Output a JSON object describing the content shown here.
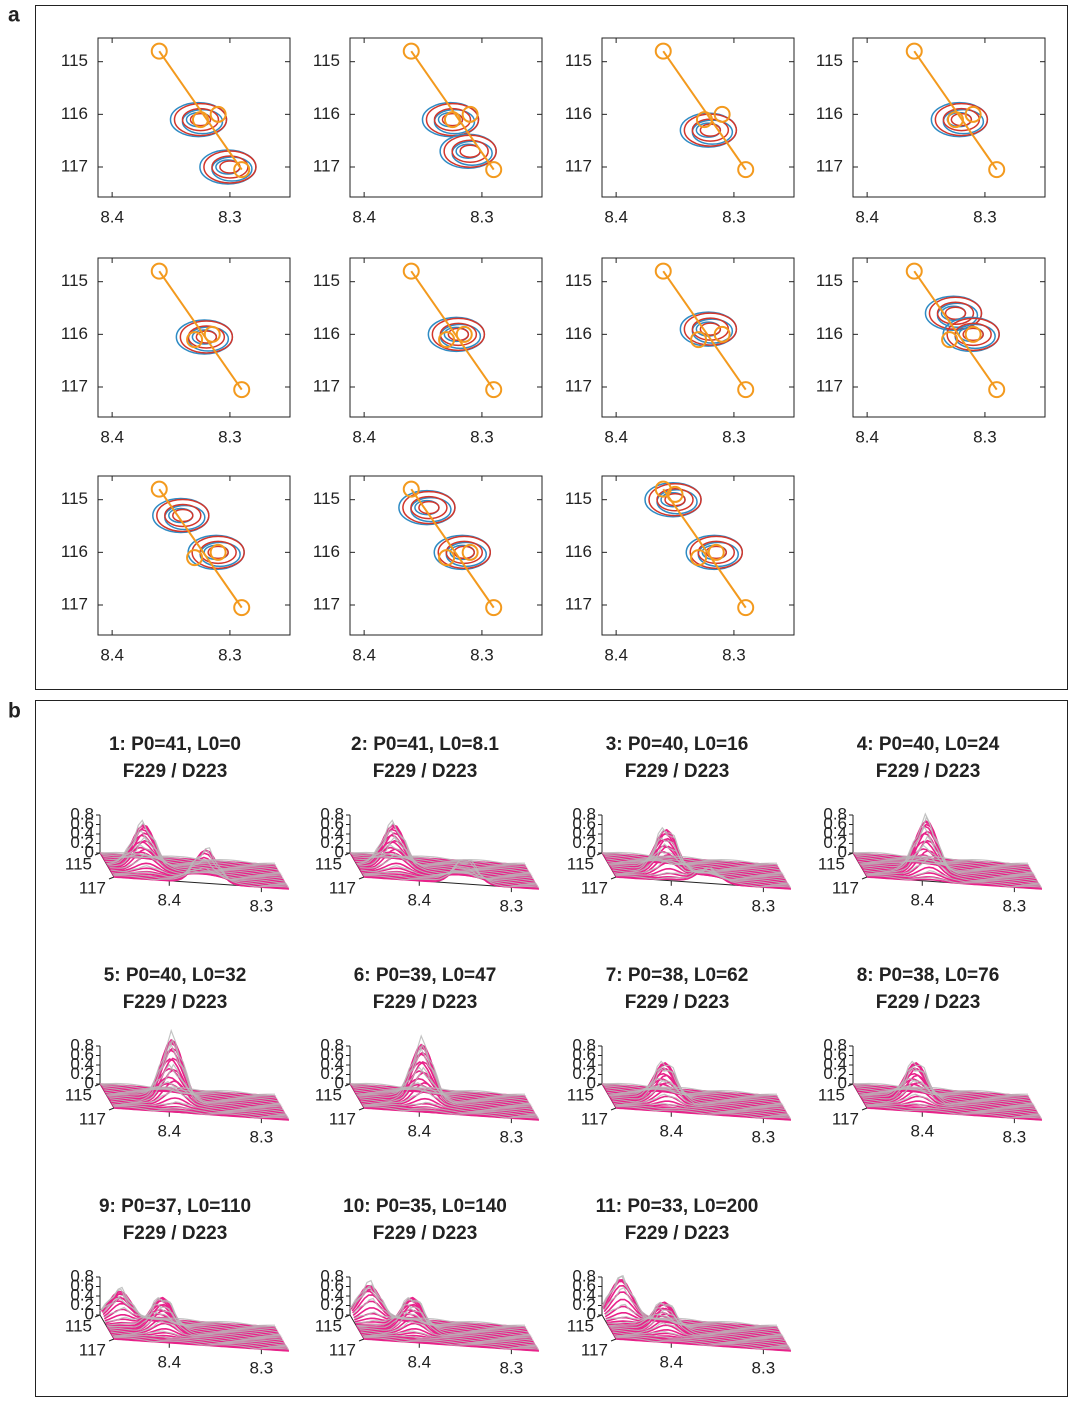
{
  "panel_labels": [
    "a",
    "b"
  ],
  "chart_data": [
    {
      "type": "contour",
      "xlim": [
        8.249,
        8.412
      ],
      "x_reversed": true,
      "ylim": [
        114.55,
        117.57
      ],
      "y_reversed": true,
      "xticks": [
        8.4,
        8.3
      ],
      "yticks": [
        115,
        116,
        117
      ],
      "trajectory": {
        "x": [
          8.36,
          8.29
        ],
        "y": [
          114.8,
          117.05
        ]
      },
      "circles": {
        "x": [
          8.325,
          8.31
        ],
        "y": [
          116.1,
          116.0
        ]
      },
      "peaks": {
        "x": [
          8.325,
          8.3
        ],
        "y": [
          116.1,
          117.0
        ]
      }
    },
    {
      "type": "contour",
      "xlim": [
        8.249,
        8.412
      ],
      "x_reversed": true,
      "ylim": [
        114.55,
        117.57
      ],
      "y_reversed": true,
      "xticks": [
        8.4,
        8.3
      ],
      "yticks": [
        115,
        116,
        117
      ],
      "trajectory": {
        "x": [
          8.36,
          8.29
        ],
        "y": [
          114.8,
          117.05
        ]
      },
      "circles": {
        "x": [
          8.325,
          8.31
        ],
        "y": [
          116.1,
          116.0
        ]
      },
      "peaks": {
        "x": [
          8.325,
          8.31
        ],
        "y": [
          116.1,
          116.7
        ]
      }
    },
    {
      "type": "contour",
      "xlim": [
        8.249,
        8.412
      ],
      "x_reversed": true,
      "ylim": [
        114.55,
        117.57
      ],
      "y_reversed": true,
      "xticks": [
        8.4,
        8.3
      ],
      "yticks": [
        115,
        116,
        117
      ],
      "trajectory": {
        "x": [
          8.36,
          8.29
        ],
        "y": [
          114.8,
          117.05
        ]
      },
      "circles": {
        "x": [
          8.325,
          8.31
        ],
        "y": [
          116.1,
          116.0
        ]
      },
      "peaks": {
        "x": [
          8.32
        ],
        "y": [
          116.3
        ]
      }
    },
    {
      "type": "contour",
      "xlim": [
        8.249,
        8.412
      ],
      "x_reversed": true,
      "ylim": [
        114.55,
        117.57
      ],
      "y_reversed": true,
      "xticks": [
        8.4,
        8.3
      ],
      "yticks": [
        115,
        116,
        117
      ],
      "trajectory": {
        "x": [
          8.36,
          8.29
        ],
        "y": [
          114.8,
          117.05
        ]
      },
      "circles": {
        "x": [
          8.325,
          8.31
        ],
        "y": [
          116.1,
          116.0
        ]
      },
      "peaks": {
        "x": [
          8.32
        ],
        "y": [
          116.1
        ]
      }
    },
    {
      "type": "contour",
      "xlim": [
        8.249,
        8.412
      ],
      "x_reversed": true,
      "ylim": [
        114.55,
        117.57
      ],
      "y_reversed": true,
      "xticks": [
        8.4,
        8.3
      ],
      "yticks": [
        115,
        116,
        117
      ],
      "trajectory": {
        "x": [
          8.36,
          8.29
        ],
        "y": [
          114.8,
          117.05
        ]
      },
      "circles": {
        "x": [
          8.33,
          8.315
        ],
        "y": [
          116.1,
          116.0
        ]
      },
      "peaks": {
        "x": [
          8.32
        ],
        "y": [
          116.05
        ]
      }
    },
    {
      "type": "contour",
      "xlim": [
        8.249,
        8.412
      ],
      "x_reversed": true,
      "ylim": [
        114.55,
        117.57
      ],
      "y_reversed": true,
      "xticks": [
        8.4,
        8.3
      ],
      "yticks": [
        115,
        116,
        117
      ],
      "trajectory": {
        "x": [
          8.36,
          8.29
        ],
        "y": [
          114.8,
          117.05
        ]
      },
      "circles": {
        "x": [
          8.33,
          8.315
        ],
        "y": [
          116.1,
          116.0
        ]
      },
      "peaks": {
        "x": [
          8.32
        ],
        "y": [
          116.0
        ]
      }
    },
    {
      "type": "contour",
      "xlim": [
        8.249,
        8.412
      ],
      "x_reversed": true,
      "ylim": [
        114.55,
        117.57
      ],
      "y_reversed": true,
      "xticks": [
        8.4,
        8.3
      ],
      "yticks": [
        115,
        116,
        117
      ],
      "trajectory": {
        "x": [
          8.36,
          8.29
        ],
        "y": [
          114.8,
          117.05
        ]
      },
      "circles": {
        "x": [
          8.33,
          8.31
        ],
        "y": [
          116.1,
          116.0
        ]
      },
      "peaks": {
        "x": [
          8.32
        ],
        "y": [
          115.9
        ]
      }
    },
    {
      "type": "contour",
      "xlim": [
        8.249,
        8.412
      ],
      "x_reversed": true,
      "ylim": [
        114.55,
        117.57
      ],
      "y_reversed": true,
      "xticks": [
        8.4,
        8.3
      ],
      "yticks": [
        115,
        116,
        117
      ],
      "trajectory": {
        "x": [
          8.36,
          8.29
        ],
        "y": [
          114.8,
          117.05
        ]
      },
      "circles": {
        "x": [
          8.33,
          8.31
        ],
        "y": [
          116.1,
          116.0
        ]
      },
      "peaks": {
        "x": [
          8.325,
          8.31
        ],
        "y": [
          115.6,
          116.0
        ]
      }
    },
    {
      "type": "contour",
      "xlim": [
        8.249,
        8.412
      ],
      "x_reversed": true,
      "ylim": [
        114.55,
        117.57
      ],
      "y_reversed": true,
      "xticks": [
        8.4,
        8.3
      ],
      "yticks": [
        115,
        116,
        117
      ],
      "trajectory": {
        "x": [
          8.36,
          8.29
        ],
        "y": [
          114.8,
          117.05
        ]
      },
      "circles": {
        "x": [
          8.33,
          8.31
        ],
        "y": [
          116.1,
          116.0
        ]
      },
      "peaks": {
        "x": [
          8.34,
          8.31
        ],
        "y": [
          115.3,
          116.0
        ]
      }
    },
    {
      "type": "contour",
      "xlim": [
        8.249,
        8.412
      ],
      "x_reversed": true,
      "ylim": [
        114.55,
        117.57
      ],
      "y_reversed": true,
      "xticks": [
        8.4,
        8.3
      ],
      "yticks": [
        115,
        116,
        117
      ],
      "trajectory": {
        "x": [
          8.36,
          8.29
        ],
        "y": [
          114.8,
          117.05
        ]
      },
      "circles": {
        "x": [
          8.33,
          8.31
        ],
        "y": [
          116.1,
          116.0
        ]
      },
      "peaks": {
        "x": [
          8.345,
          8.315
        ],
        "y": [
          115.15,
          116.0
        ]
      }
    },
    {
      "type": "contour",
      "xlim": [
        8.249,
        8.412
      ],
      "x_reversed": true,
      "ylim": [
        114.55,
        117.57
      ],
      "y_reversed": true,
      "xticks": [
        8.4,
        8.3
      ],
      "yticks": [
        115,
        116,
        117
      ],
      "trajectory": {
        "x": [
          8.36,
          8.29
        ],
        "y": [
          114.8,
          117.05
        ]
      },
      "circles": {
        "x": [
          8.35,
          8.33,
          8.315
        ],
        "y": [
          114.9,
          116.1,
          116.0
        ]
      },
      "peaks": {
        "x": [
          8.35,
          8.315
        ],
        "y": [
          115.0,
          116.0
        ]
      }
    },
    {
      "type": "surface",
      "title": "1: P0=41, L0=0",
      "subtitle": "F229 / D223",
      "xlim": [
        8.46,
        8.27
      ],
      "ylim": [
        115,
        117
      ],
      "zlim": [
        0,
        0.8
      ],
      "xticks": [
        8.4,
        8.3
      ],
      "yticks": [
        115,
        117
      ],
      "zticks": [
        0,
        0.2,
        0.4,
        0.6,
        0.8
      ],
      "peaks": {
        "x": [
          8.42,
          8.36
        ],
        "y": [
          116,
          117
        ],
        "height": [
          0.9,
          0.7
        ]
      }
    },
    {
      "type": "surface",
      "title": "2: P0=41, L0=8.1",
      "subtitle": "F229 / D223",
      "xlim": [
        8.46,
        8.27
      ],
      "ylim": [
        115,
        117
      ],
      "zlim": [
        0,
        0.8
      ],
      "xticks": [
        8.4,
        8.3
      ],
      "yticks": [
        115,
        117
      ],
      "zticks": [
        0,
        0.2,
        0.4,
        0.6,
        0.8
      ],
      "peaks": {
        "x": [
          8.42,
          8.35
        ],
        "y": [
          116,
          117
        ],
        "height": [
          0.9,
          0.5
        ]
      }
    },
    {
      "type": "surface",
      "title": "3: P0=40, L0=16",
      "subtitle": "F229 / D223",
      "xlim": [
        8.46,
        8.27
      ],
      "ylim": [
        115,
        117
      ],
      "zlim": [
        0,
        0.8
      ],
      "xticks": [
        8.4,
        8.3
      ],
      "yticks": [
        115,
        117
      ],
      "zticks": [
        0,
        0.2,
        0.4,
        0.6,
        0.8
      ],
      "peaks": {
        "x": [
          8.4,
          8.36
        ],
        "y": [
          116.3,
          117
        ],
        "height": [
          0.9,
          0.3
        ]
      }
    },
    {
      "type": "surface",
      "title": "4: P0=40, L0=24",
      "subtitle": "F229 / D223",
      "xlim": [
        8.46,
        8.27
      ],
      "ylim": [
        115,
        117
      ],
      "zlim": [
        0,
        0.8
      ],
      "xticks": [
        8.4,
        8.3
      ],
      "yticks": [
        115,
        117
      ],
      "zticks": [
        0,
        0.2,
        0.4,
        0.6,
        0.8
      ],
      "peaks": {
        "x": [
          8.39
        ],
        "y": [
          116.3
        ],
        "height": [
          1.1
        ]
      }
    },
    {
      "type": "surface",
      "title": "5: P0=40, L0=32",
      "subtitle": "F229 / D223",
      "xlim": [
        8.46,
        8.27
      ],
      "ylim": [
        115,
        117
      ],
      "zlim": [
        0,
        0.8
      ],
      "xticks": [
        8.4,
        8.3
      ],
      "yticks": [
        115,
        117
      ],
      "zticks": [
        0,
        0.2,
        0.4,
        0.6,
        0.8
      ],
      "peaks": {
        "x": [
          8.39
        ],
        "y": [
          116.1
        ],
        "height": [
          1.3
        ]
      }
    },
    {
      "type": "surface",
      "title": "6: P0=39, L0=47",
      "subtitle": "F229 / D223",
      "xlim": [
        8.46,
        8.27
      ],
      "ylim": [
        115,
        117
      ],
      "zlim": [
        0,
        0.8
      ],
      "xticks": [
        8.4,
        8.3
      ],
      "yticks": [
        115,
        117
      ],
      "zticks": [
        0,
        0.2,
        0.4,
        0.6,
        0.8
      ],
      "peaks": {
        "x": [
          8.39
        ],
        "y": [
          116.1
        ],
        "height": [
          1.2
        ]
      }
    },
    {
      "type": "surface",
      "title": "7: P0=38, L0=62",
      "subtitle": "F229 / D223",
      "xlim": [
        8.46,
        8.27
      ],
      "ylim": [
        115,
        117
      ],
      "zlim": [
        0,
        0.8
      ],
      "xticks": [
        8.4,
        8.3
      ],
      "yticks": [
        115,
        117
      ],
      "zticks": [
        0,
        0.2,
        0.4,
        0.6,
        0.8
      ],
      "peaks": {
        "x": [
          8.4
        ],
        "y": [
          116.1
        ],
        "height": [
          0.8
        ]
      }
    },
    {
      "type": "surface",
      "title": "8: P0=38, L0=76",
      "subtitle": "F229 / D223",
      "xlim": [
        8.46,
        8.27
      ],
      "ylim": [
        115,
        117
      ],
      "zlim": [
        0,
        0.8
      ],
      "xticks": [
        8.4,
        8.3
      ],
      "yticks": [
        115,
        117
      ],
      "zticks": [
        0,
        0.2,
        0.4,
        0.6,
        0.8
      ],
      "peaks": {
        "x": [
          8.4
        ],
        "y": [
          116.1
        ],
        "height": [
          0.8
        ]
      }
    },
    {
      "type": "surface",
      "title": "9: P0=37, L0=110",
      "subtitle": "F229 / D223",
      "xlim": [
        8.46,
        8.27
      ],
      "ylim": [
        115,
        117
      ],
      "zlim": [
        0,
        0.8
      ],
      "xticks": [
        8.4,
        8.3
      ],
      "yticks": [
        115,
        117
      ],
      "zticks": [
        0,
        0.2,
        0.4,
        0.6,
        0.8
      ],
      "peaks": {
        "x": [
          8.44,
          8.4
        ],
        "y": [
          115.3,
          116
        ],
        "height": [
          0.6,
          0.7
        ]
      }
    },
    {
      "type": "surface",
      "title": "10: P0=35, L0=140",
      "subtitle": "F229 / D223",
      "xlim": [
        8.46,
        8.27
      ],
      "ylim": [
        115,
        117
      ],
      "zlim": [
        0,
        0.8
      ],
      "xticks": [
        8.4,
        8.3
      ],
      "yticks": [
        115,
        117
      ],
      "zticks": [
        0,
        0.2,
        0.4,
        0.6,
        0.8
      ],
      "peaks": {
        "x": [
          8.44,
          8.4
        ],
        "y": [
          115.2,
          116
        ],
        "height": [
          0.7,
          0.7
        ]
      }
    },
    {
      "type": "surface",
      "title": "11: P0=33, L0=200",
      "subtitle": "F229 / D223",
      "xlim": [
        8.46,
        8.27
      ],
      "ylim": [
        115,
        117
      ],
      "zlim": [
        0,
        0.8
      ],
      "xticks": [
        8.4,
        8.3
      ],
      "yticks": [
        115,
        117
      ],
      "zticks": [
        0,
        0.2,
        0.4,
        0.6,
        0.8
      ],
      "peaks": {
        "x": [
          8.44,
          8.4
        ],
        "y": [
          115.1,
          116
        ],
        "height": [
          0.8,
          0.6
        ]
      }
    }
  ]
}
